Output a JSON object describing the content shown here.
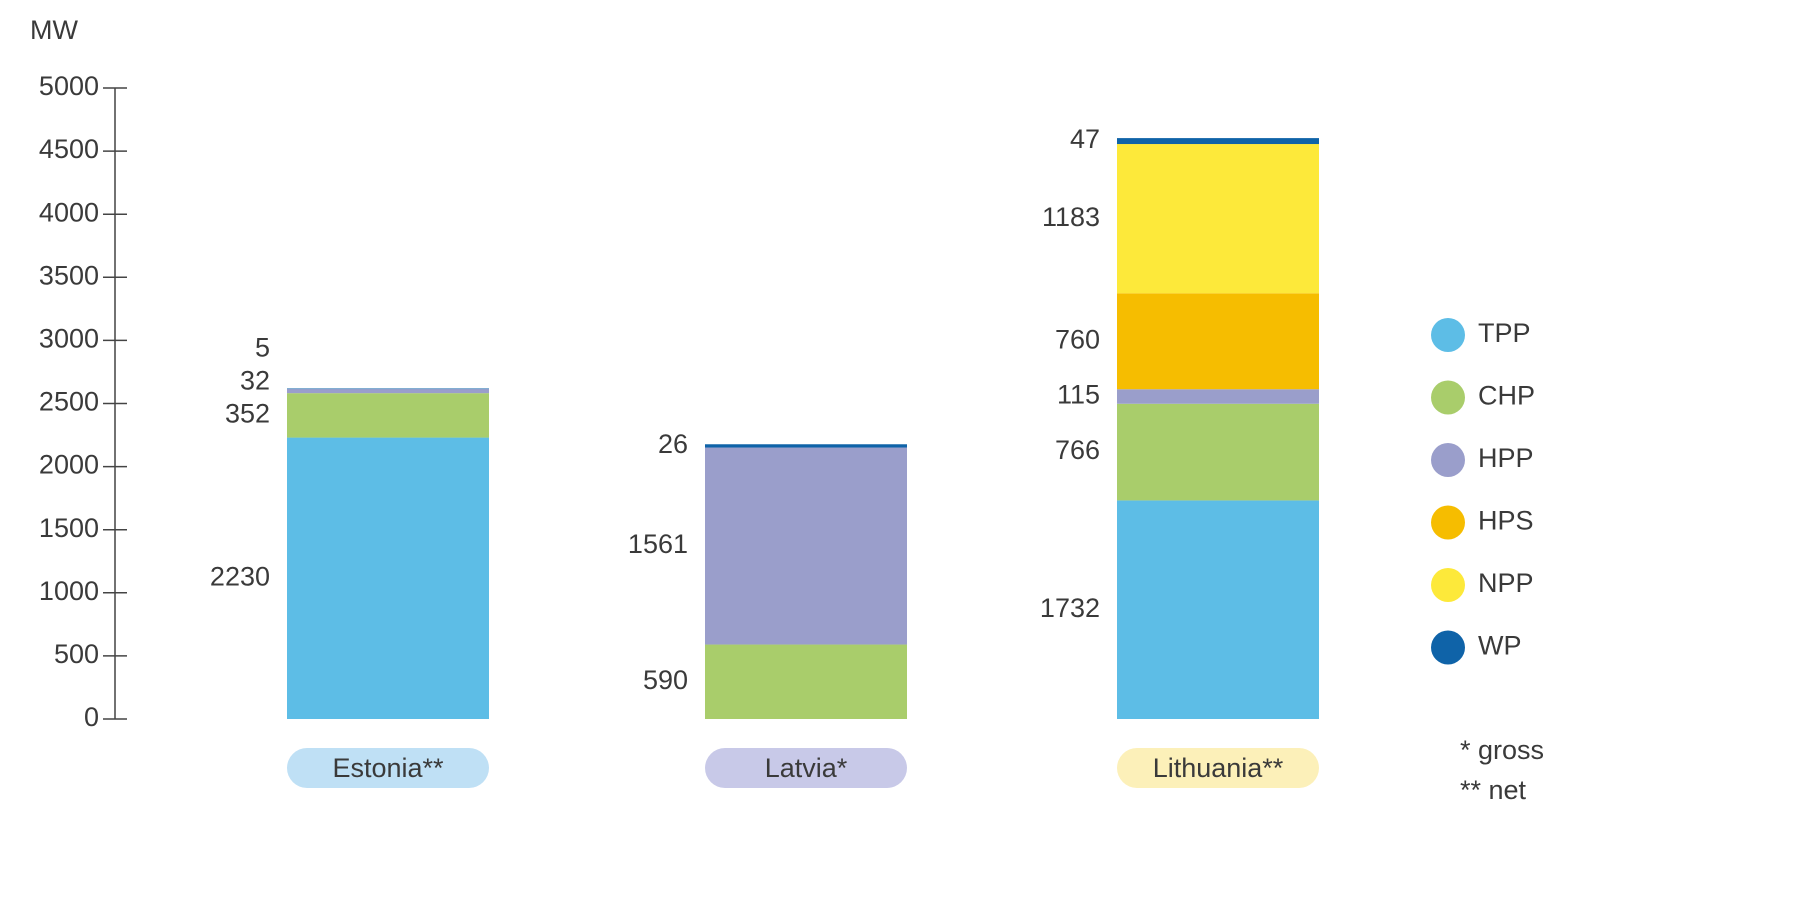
{
  "chart_data": {
    "type": "stacked_bar",
    "y_axis_label": "MW",
    "categories": [
      "Estonia**",
      "Latvia*",
      "Lithuania**"
    ],
    "category_colors": [
      "#bfe0f5",
      "#c8c9e8",
      "#fcf0b9"
    ],
    "series": [
      {
        "name": "TPP",
        "color": "#5dbde6",
        "values": [
          2230,
          null,
          1732
        ]
      },
      {
        "name": "CHP",
        "color": "#a9cd6b",
        "values": [
          352,
          590,
          766
        ]
      },
      {
        "name": "HPP",
        "color": "#9a9ecb",
        "values": [
          32,
          1561,
          115
        ]
      },
      {
        "name": "HPS",
        "color": "#f6bd00",
        "values": [
          null,
          null,
          760
        ]
      },
      {
        "name": "NPP",
        "color": "#fde93a",
        "values": [
          null,
          null,
          1183
        ]
      },
      {
        "name": "WP",
        "color": "#0f63a8",
        "values": [
          5,
          26,
          47
        ]
      }
    ],
    "ylim": [
      0,
      5000
    ],
    "yticks": [
      0,
      500,
      1000,
      1500,
      2000,
      2500,
      3000,
      3500,
      4000,
      4500,
      5000
    ],
    "notes": [
      "* gross",
      "** net"
    ],
    "legend": "right"
  }
}
